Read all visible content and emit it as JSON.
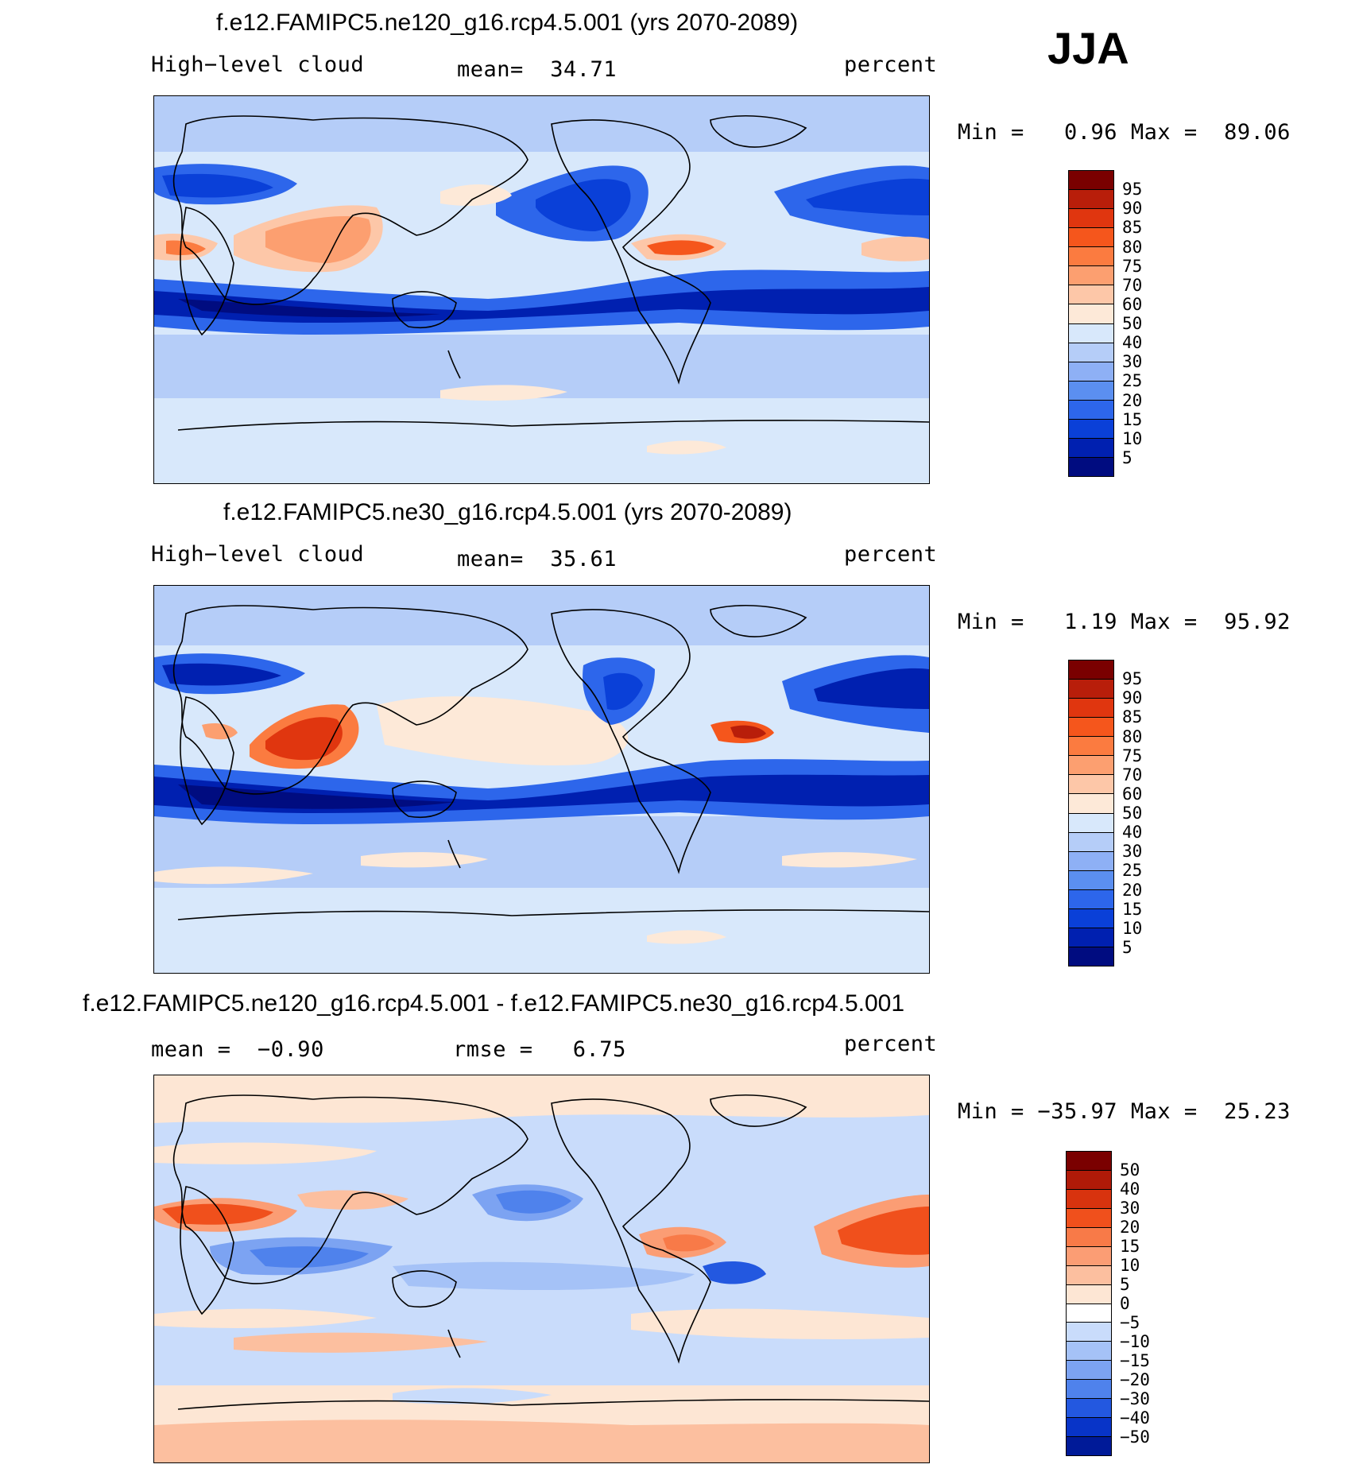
{
  "season": "JJA",
  "panels": [
    {
      "title": "f.e12.FAMIPC5.ne120_g16.rcp4.5.001 (yrs 2070-2089)",
      "left_text": "High−level cloud",
      "center_text": "mean=  34.71",
      "right_text": "percent",
      "minmax_text": "Min =   0.96 Max =  89.06",
      "colorbar": {
        "labels": [
          "95",
          "90",
          "85",
          "80",
          "75",
          "70",
          "60",
          "50",
          "40",
          "30",
          "25",
          "20",
          "15",
          "10",
          "5"
        ],
        "colors": [
          "#7a0000",
          "#b81e0a",
          "#e0360f",
          "#f5561c",
          "#fb7b40",
          "#fc9f70",
          "#fdc7a8",
          "#fde9d8",
          "#d8e8fb",
          "#b5cdf8",
          "#8eb0f5",
          "#5b8ff0",
          "#2d66eb",
          "#0a40d8",
          "#0020b0",
          "#000c80"
        ]
      }
    },
    {
      "title": "f.e12.FAMIPC5.ne30_g16.rcp4.5.001 (yrs 2070-2089)",
      "left_text": "High−level cloud",
      "center_text": "mean=  35.61",
      "right_text": "percent",
      "minmax_text": "Min =   1.19 Max =  95.92",
      "colorbar": {
        "labels": [
          "95",
          "90",
          "85",
          "80",
          "75",
          "70",
          "60",
          "50",
          "40",
          "30",
          "25",
          "20",
          "15",
          "10",
          "5"
        ],
        "colors": [
          "#7a0000",
          "#b81e0a",
          "#e0360f",
          "#f5561c",
          "#fb7b40",
          "#fc9f70",
          "#fdc7a8",
          "#fde9d8",
          "#d8e8fb",
          "#b5cdf8",
          "#8eb0f5",
          "#5b8ff0",
          "#2d66eb",
          "#0a40d8",
          "#0020b0",
          "#000c80"
        ]
      }
    },
    {
      "title": "f.e12.FAMIPC5.ne120_g16.rcp4.5.001 - f.e12.FAMIPC5.ne30_g16.rcp4.5.001",
      "left_text": "mean =  −0.90",
      "center_text": "rmse =   6.75",
      "right_text": "percent",
      "minmax_text": "Min = −35.97 Max =  25.23",
      "colorbar": {
        "labels": [
          "50",
          "40",
          "30",
          "20",
          "15",
          "10",
          "5",
          "0",
          "−5",
          "−10",
          "−15",
          "−20",
          "−30",
          "−40",
          "−50"
        ],
        "colors": [
          "#7a0000",
          "#b01a08",
          "#d8330e",
          "#f0501c",
          "#f87a48",
          "#fb9d74",
          "#fcbf9f",
          "#fde6d4",
          "#ffffff",
          "#c9dcfb",
          "#a5c2f7",
          "#7ca3f2",
          "#4f82ec",
          "#2358e0",
          "#0834c8",
          "#001a98"
        ]
      }
    }
  ]
}
